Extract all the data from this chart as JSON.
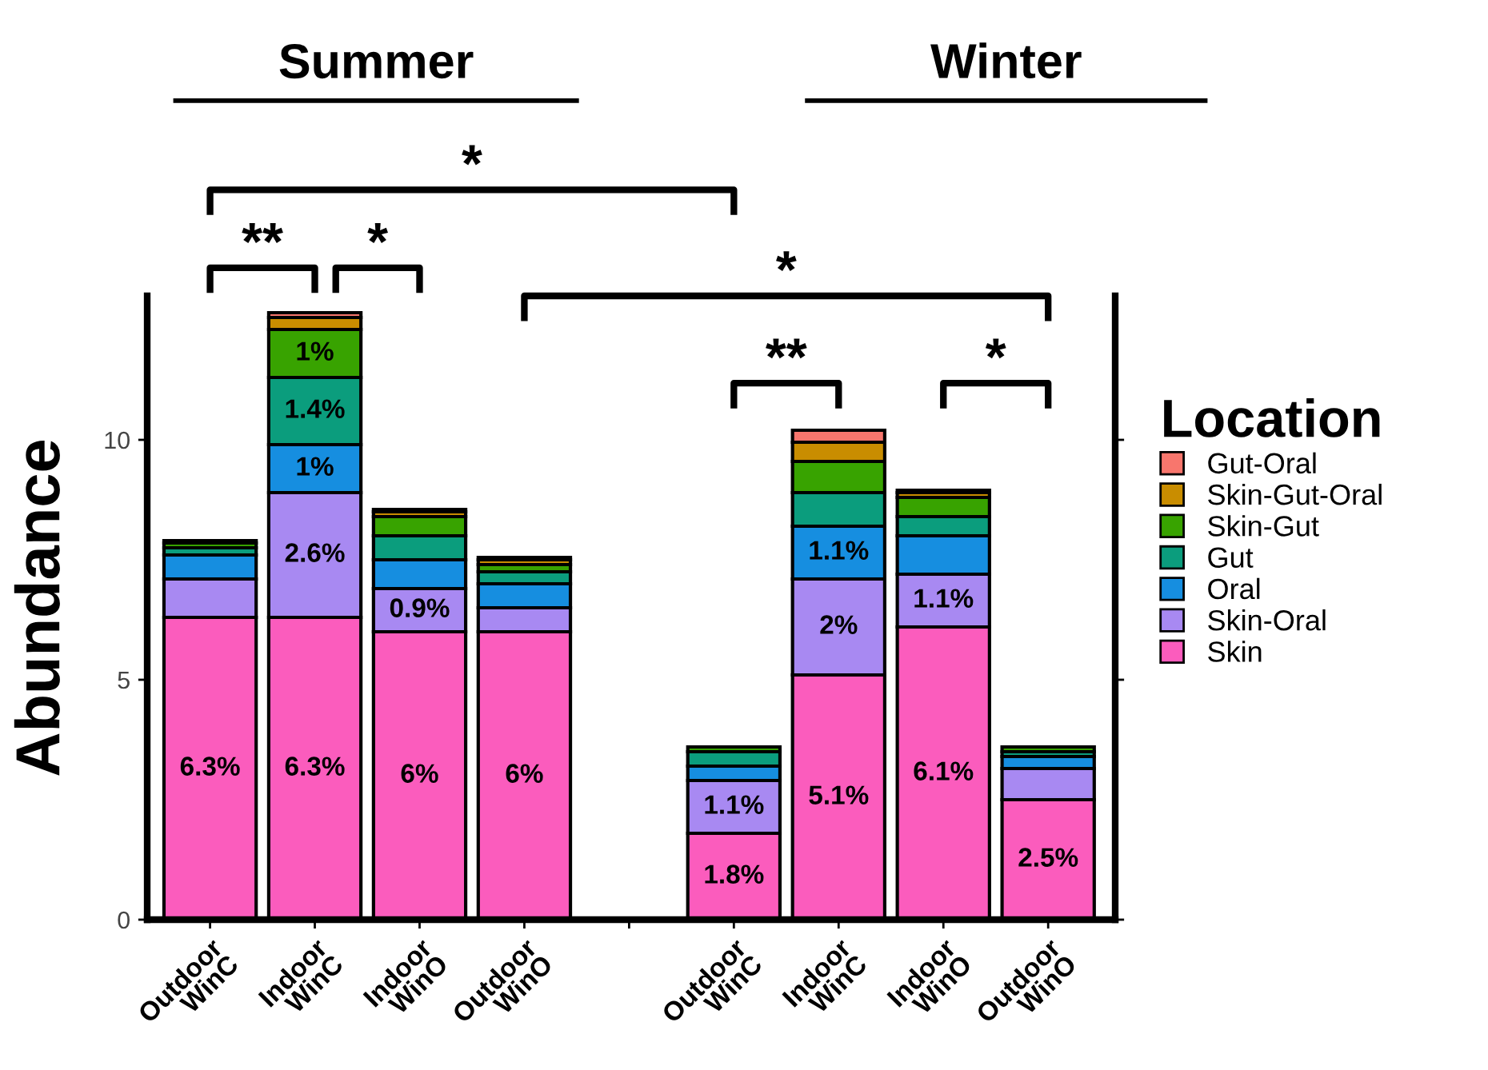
{
  "chart_data": {
    "type": "bar",
    "stacked": true,
    "ylabel": "Abundance",
    "legend_title": "Location",
    "legend": "right",
    "grid": false,
    "categories": [
      "Outdoor\nWinC",
      "Indoor\nWinC",
      "Indoor\nWinO",
      "Outdoor\nWinO",
      null,
      "Outdoor\nWinC",
      "Indoor\nWinC",
      "Indoor\nWinO",
      "Outdoor\nWinO"
    ],
    "ylim": [
      0,
      13
    ],
    "yticks": [
      0,
      5,
      10
    ],
    "series": [
      {
        "name": "Skin",
        "color": "#fb5cbd",
        "values": [
          6.3,
          6.3,
          6.0,
          6.0,
          null,
          1.8,
          5.1,
          6.1,
          2.5
        ],
        "value_labels": [
          "6.3%",
          "6.3%",
          "6%",
          "6%",
          null,
          "1.8%",
          "5.1%",
          "6.1%",
          "2.5%"
        ]
      },
      {
        "name": "Skin-Oral",
        "color": "#a889f2",
        "values": [
          0.8,
          2.6,
          0.9,
          0.5,
          null,
          1.1,
          2.0,
          1.1,
          0.65
        ],
        "value_labels": [
          null,
          "2.6%",
          "0.9%",
          null,
          null,
          "1.1%",
          "2%",
          "1.1%",
          null
        ]
      },
      {
        "name": "Oral",
        "color": "#168ee0",
        "values": [
          0.5,
          1.0,
          0.6,
          0.5,
          null,
          0.3,
          1.1,
          0.8,
          0.25
        ],
        "value_labels": [
          null,
          "1%",
          null,
          null,
          null,
          null,
          "1.1%",
          null,
          null
        ]
      },
      {
        "name": "Gut",
        "color": "#0b9d7d",
        "values": [
          0.15,
          1.4,
          0.5,
          0.25,
          null,
          0.3,
          0.7,
          0.4,
          0.1
        ],
        "value_labels": [
          null,
          "1.4%",
          null,
          null,
          null,
          null,
          null,
          null,
          null
        ]
      },
      {
        "name": "Skin-Gut",
        "color": "#38a300",
        "values": [
          0.1,
          1.0,
          0.4,
          0.15,
          null,
          0.1,
          0.65,
          0.4,
          0.1
        ],
        "value_labels": [
          null,
          "1%",
          null,
          null,
          null,
          null,
          null,
          null,
          null
        ]
      },
      {
        "name": "Skin-Gut-Oral",
        "color": "#c98d00",
        "values": [
          null,
          0.25,
          0.1,
          0.1,
          null,
          null,
          0.4,
          0.1,
          null
        ]
      },
      {
        "name": "Gut-Oral",
        "color": "#f8766d",
        "values": [
          0.05,
          0.1,
          0.05,
          0.05,
          null,
          null,
          0.25,
          0.05,
          null
        ]
      }
    ],
    "annotations": [
      "Summer",
      "Winter",
      "*",
      "**",
      "*",
      "*",
      "**",
      "*"
    ]
  }
}
